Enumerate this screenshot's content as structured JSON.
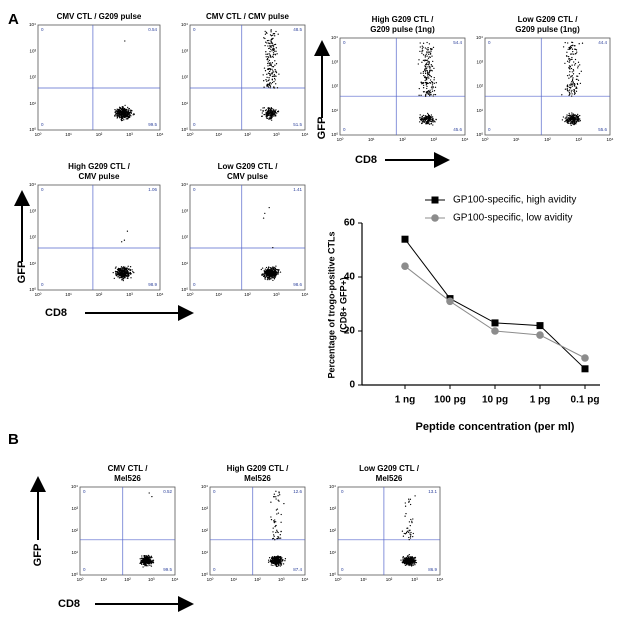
{
  "figure": {
    "panel_labels": [
      "A",
      "B"
    ],
    "axis_labels": {
      "y": "GFP",
      "x": "CD8"
    },
    "flow_ticks": [
      "10⁰",
      "10¹",
      "10²",
      "10³",
      "10⁴"
    ],
    "flow_plots": [
      {
        "title": [
          "CMV CTL / G209 pulse"
        ],
        "quadrants": [
          "0",
          "0.54",
          "0",
          "99.5"
        ]
      },
      {
        "title": [
          "CMV CTL / CMV pulse"
        ],
        "quadrants": [
          "0",
          "48.5",
          "0",
          "51.5"
        ]
      },
      {
        "title": [
          "High G209 CTL /",
          "G209 pulse (1ng)"
        ],
        "quadrants": [
          "0",
          "54.4",
          "0",
          "45.6"
        ]
      },
      {
        "title": [
          "Low G209 CTL /",
          "G209 pulse (1ng)"
        ],
        "quadrants": [
          "0",
          "44.4",
          "0",
          "55.6"
        ]
      },
      {
        "title": [
          "High G209 CTL  /",
          "CMV pulse"
        ],
        "quadrants": [
          "0",
          "1.06",
          "0",
          "98.9"
        ]
      },
      {
        "title": [
          "Low G209 CTL /",
          "CMV pulse"
        ],
        "quadrants": [
          "0",
          "1.41",
          "0",
          "98.6"
        ]
      },
      {
        "title": [
          "CMV CTL /",
          "Mel526"
        ],
        "quadrants": [
          "0",
          "0.52",
          "0",
          "99.5"
        ]
      },
      {
        "title": [
          "High G209 CTL /",
          "Mel526"
        ],
        "quadrants": [
          "0",
          "12.6",
          "0",
          "87.4"
        ]
      },
      {
        "title": [
          "Low G209  CTL /",
          "Mel526"
        ],
        "quadrants": [
          "0",
          "13.1",
          "0",
          "86.9"
        ]
      }
    ]
  },
  "chart_data": {
    "type": "line",
    "ylabel": [
      "Percentage of trogo-positive CTLs",
      "(CD8+ GFP+)"
    ],
    "xlabel": "Peptide concentration (per ml)",
    "categories": [
      "1 ng",
      "100 pg",
      "10 pg",
      "1 pg",
      "0.1 pg"
    ],
    "series": [
      {
        "name": "GP100-specific, high avidity",
        "color": "#000000",
        "marker": "square",
        "values": [
          54,
          32,
          23,
          22,
          6
        ]
      },
      {
        "name": "GP100-specific, low avidity",
        "color": "#8c8c8c",
        "marker": "circle",
        "values": [
          44,
          31,
          20,
          18.5,
          10
        ]
      }
    ],
    "ylim": [
      0,
      60
    ],
    "yticks": [
      0,
      20,
      40,
      60
    ],
    "legend": "top-right"
  }
}
